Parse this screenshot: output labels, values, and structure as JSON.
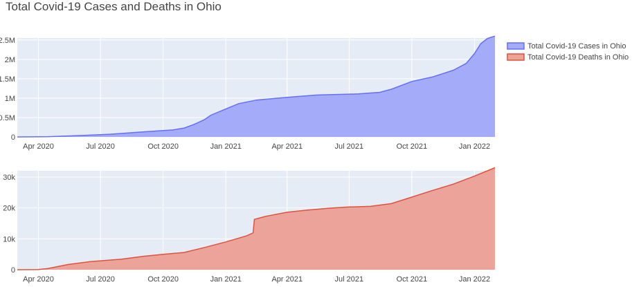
{
  "chart_data": {
    "type": "area",
    "title": "Total Covid-19 Cases and Deaths in Ohio",
    "x_tick_labels": [
      "Apr 2020",
      "Jul 2020",
      "Oct 2020",
      "Jan 2021",
      "Apr 2021",
      "Jul 2021",
      "Oct 2021",
      "Jan 2022"
    ],
    "x_tick_dates": [
      "2020-04-01",
      "2020-07-01",
      "2020-10-01",
      "2021-01-01",
      "2021-04-01",
      "2021-07-01",
      "2021-10-01",
      "2022-01-01"
    ],
    "xlim": [
      "2020-03-01",
      "2022-01-31"
    ],
    "grid": true,
    "legend_position": "top-right",
    "plot_background": "#e5ecf6",
    "panels": [
      {
        "series_name": "Total Covid-19 Cases in Ohio",
        "line_color": "#636efa",
        "fill_color": "#a4abf8",
        "ylim": [
          0,
          2550000
        ],
        "y_ticks": [
          0,
          500000,
          1000000,
          1500000,
          2000000,
          2500000
        ],
        "y_tick_labels": [
          "0",
          "0.5M",
          "1M",
          "1.5M",
          "2M",
          "2.5M"
        ],
        "points": [
          [
            "2020-03-01",
            0
          ],
          [
            "2020-04-15",
            8000
          ],
          [
            "2020-06-01",
            35000
          ],
          [
            "2020-07-15",
            70000
          ],
          [
            "2020-09-01",
            130000
          ],
          [
            "2020-10-15",
            180000
          ],
          [
            "2020-11-01",
            230000
          ],
          [
            "2020-11-15",
            320000
          ],
          [
            "2020-12-01",
            450000
          ],
          [
            "2020-12-10",
            560000
          ],
          [
            "2021-01-01",
            720000
          ],
          [
            "2021-01-20",
            860000
          ],
          [
            "2021-02-15",
            950000
          ],
          [
            "2021-04-01",
            1020000
          ],
          [
            "2021-05-15",
            1080000
          ],
          [
            "2021-07-15",
            1110000
          ],
          [
            "2021-08-15",
            1150000
          ],
          [
            "2021-09-01",
            1230000
          ],
          [
            "2021-10-01",
            1430000
          ],
          [
            "2021-11-01",
            1550000
          ],
          [
            "2021-12-01",
            1720000
          ],
          [
            "2021-12-20",
            1900000
          ],
          [
            "2022-01-01",
            2150000
          ],
          [
            "2022-01-10",
            2400000
          ],
          [
            "2022-01-20",
            2540000
          ],
          [
            "2022-01-31",
            2600000
          ]
        ]
      },
      {
        "series_name": "Total Covid-19 Deaths in Ohio",
        "line_color": "#e0513b",
        "fill_color": "#eba39a",
        "ylim": [
          0,
          32000
        ],
        "y_ticks": [
          0,
          10000,
          20000,
          30000
        ],
        "y_tick_labels": [
          "0",
          "10k",
          "20k",
          "30k"
        ],
        "points": [
          [
            "2020-03-01",
            0
          ],
          [
            "2020-04-01",
            50
          ],
          [
            "2020-04-15",
            400
          ],
          [
            "2020-05-15",
            1700
          ],
          [
            "2020-06-15",
            2600
          ],
          [
            "2020-08-01",
            3400
          ],
          [
            "2020-09-01",
            4300
          ],
          [
            "2020-10-01",
            5000
          ],
          [
            "2020-11-01",
            5600
          ],
          [
            "2020-12-01",
            7200
          ],
          [
            "2021-01-01",
            9000
          ],
          [
            "2021-02-01",
            11000
          ],
          [
            "2021-02-10",
            11900
          ],
          [
            "2021-02-12",
            16300
          ],
          [
            "2021-03-01",
            17300
          ],
          [
            "2021-04-01",
            18600
          ],
          [
            "2021-05-01",
            19300
          ],
          [
            "2021-06-01",
            19900
          ],
          [
            "2021-07-01",
            20300
          ],
          [
            "2021-08-01",
            20500
          ],
          [
            "2021-09-01",
            21400
          ],
          [
            "2021-10-01",
            23500
          ],
          [
            "2021-11-01",
            25700
          ],
          [
            "2021-12-01",
            27700
          ],
          [
            "2022-01-01",
            30300
          ],
          [
            "2022-01-31",
            33000
          ]
        ]
      }
    ]
  }
}
